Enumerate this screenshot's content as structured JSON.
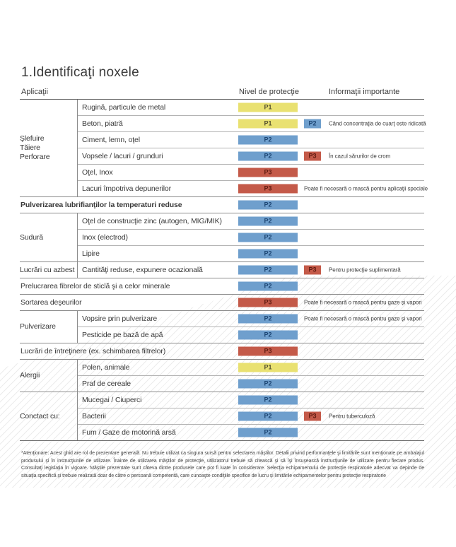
{
  "page": {
    "title": "1.Identificaţi noxele"
  },
  "badge_colors": {
    "P1": "#e9e171",
    "P2": "#6f9fcd",
    "P3": "#c45a49"
  },
  "table": {
    "headers": {
      "applications": "Aplicaţii",
      "protection": "Nivel de protecţie",
      "info": "Informaţii importante"
    },
    "sections": [
      {
        "group": "Şlefuire\nTăiere\nPerforare",
        "rows": [
          {
            "label": "Rugină, particule de metal",
            "badge": "P1"
          },
          {
            "label": "Beton, piatră",
            "badge": "P1",
            "badge2": "P2",
            "info": "Când concentraţia de cuarţ este ridicată"
          },
          {
            "label": "Ciment, lemn, oţel",
            "badge": "P2"
          },
          {
            "label": "Vopsele / lacuri / grunduri",
            "badge": "P2",
            "badge2": "P3",
            "info": "În cazul sărurilor de crom"
          },
          {
            "label": "Oţel, Inox",
            "badge": "P3"
          },
          {
            "label": "Lacuri împotriva depunerilor",
            "badge": "P3",
            "info": "Poate fi necesară o mască pentru aplicaţii speciale"
          }
        ]
      },
      {
        "label": "Pulverizarea lubrifianţilor la temperaturi reduse",
        "badge": "P2"
      },
      {
        "group": "Sudură",
        "rows": [
          {
            "label": "Oţel de construcţie zinc (autogen, MIG/MIK)",
            "badge": "P2"
          },
          {
            "label": "Inox (electrod)",
            "badge": "P2"
          },
          {
            "label": "Lipire",
            "badge": "P2"
          }
        ]
      },
      {
        "group": "Lucrări cu azbest",
        "rows": [
          {
            "label": "Cantităţi reduse, expunere ocazională",
            "badge": "P2",
            "badge2": "P3",
            "info": "Pentru protecţie suplimentară"
          }
        ]
      },
      {
        "label": "Prelucrarea fibrelor de sticlă şi a celor minerale",
        "badge": "P2"
      },
      {
        "label": "Sortarea deşeurilor",
        "badge": "P3",
        "info": "Poate fi necesară o mască pentru gaze şi vapori"
      },
      {
        "group": "Pulverizare",
        "rows": [
          {
            "label": "Vopsire prin pulverizare",
            "badge": "P2",
            "info": "Poate fi necesară o mască pentru gaze şi vapori"
          },
          {
            "label": "Pesticide pe bază de apă",
            "badge": "P2"
          }
        ]
      },
      {
        "label": "Lucrări de întreţinere (ex. schimbarea filtrelor)",
        "badge": "P3"
      },
      {
        "group": "Alergii",
        "rows": [
          {
            "label": "Polen, animale",
            "badge": "P1"
          },
          {
            "label": "Praf de cereale",
            "badge": "P2"
          }
        ]
      },
      {
        "group": "Conctact cu:",
        "rows": [
          {
            "label": "Mucegai / Ciuperci",
            "badge": "P2"
          },
          {
            "label": "Bacterii",
            "badge": "P2",
            "badge2": "P3",
            "info": "Pentru tuberculoză"
          },
          {
            "label": "Fum / Gaze de motorină arsă",
            "badge": "P2"
          }
        ]
      }
    ]
  },
  "footnote": "*Atenţionare: Acest ghid are rol de prezentare generală. Nu trebuie utilizat ca singura sursă pentru selectarea măştilor. Detalii privind performanţele şi limitările sunt menţionate pe ambalajul produsului şi în instrucţiunile de utilizare. Înainte de utilizarea măştilor de protecţie, utilizatorul trebuie să citească şi să îşi însuşească instrucţiunile de utilizare pentru fiecare produs. Consultaţi legislaţia în vigoare. Măştile prezentate sunt câteva dintre produsele care pot fi luate în considerare. Selecţia echipamentului de protecţie respiratorie adecvat va depinde de situaţia specifică şi trebuie realizată doar de către o persoană competentă, care cunoaşte condiţiile specifice de lucru şi limitările echipamentelor pentru protecţie respiratorie"
}
